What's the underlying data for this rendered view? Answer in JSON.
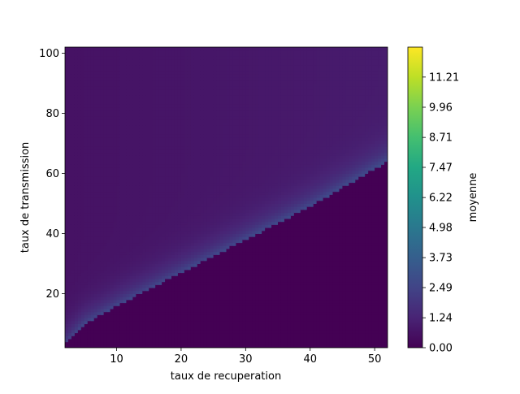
{
  "chart_data": {
    "type": "heatmap",
    "title": "",
    "xlabel": "taux de recuperation",
    "ylabel": "taux de transmission",
    "xlim": [
      2,
      52
    ],
    "ylim": [
      2,
      102
    ],
    "x_ticks": [
      10,
      20,
      30,
      40,
      50
    ],
    "y_ticks": [
      20,
      40,
      60,
      80,
      100
    ],
    "x_tick_labels": [
      "10",
      "20",
      "30",
      "40",
      "50"
    ],
    "y_tick_labels": [
      "20",
      "40",
      "60",
      "80",
      "100"
    ],
    "colormap": "viridis",
    "grid": false,
    "colorbar": {
      "label": "moyenne",
      "min": 0.0,
      "max": 12.45,
      "ticks": [
        0.0,
        1.24,
        2.49,
        3.73,
        4.98,
        6.22,
        7.47,
        8.71,
        9.96,
        11.21
      ],
      "tick_labels": [
        "0.00",
        "1.24",
        "2.49",
        "3.73",
        "4.98",
        "6.22",
        "7.47",
        "8.71",
        "9.96",
        "11.21"
      ]
    },
    "description_values": {
      "below_threshold_value": 0.0,
      "threshold_curve_peak_value": 2.6,
      "far_above_threshold_value": 0.6,
      "threshold_curve": [
        [
          2,
          3
        ],
        [
          5,
          10
        ],
        [
          10,
          16
        ],
        [
          20,
          27
        ],
        [
          30,
          38
        ],
        [
          40,
          49
        ],
        [
          52,
          64
        ]
      ]
    }
  }
}
